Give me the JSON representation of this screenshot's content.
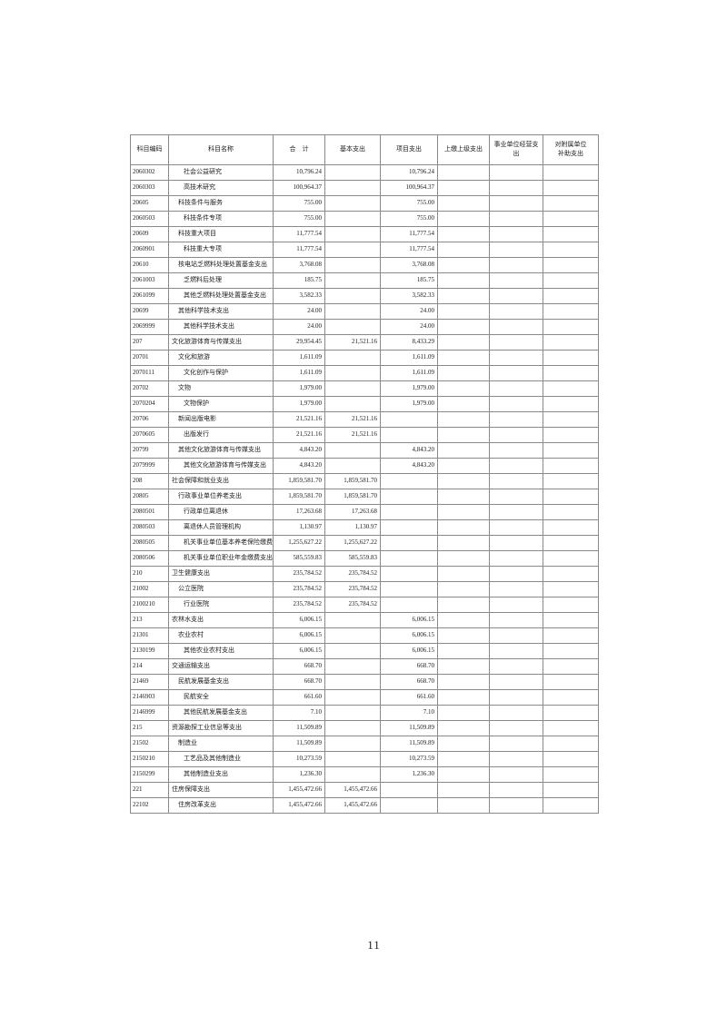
{
  "page": {
    "number": "11"
  },
  "table": {
    "columns": [
      {
        "label": "科目编码"
      },
      {
        "label": "科目名称"
      },
      {
        "label": "合　计"
      },
      {
        "label": "基本支出"
      },
      {
        "label": "项目支出"
      },
      {
        "label": "上缴上级支出"
      },
      {
        "label": "事业单位经营支出"
      },
      {
        "label": "对附属单位\n补助支出"
      }
    ],
    "rows": [
      {
        "code": "2060302",
        "name": "社会公益研究",
        "indent": 2,
        "total": "10,796.24",
        "basic": "",
        "project": "10,796.24"
      },
      {
        "code": "2060303",
        "name": "高技术研究",
        "indent": 2,
        "total": "100,964.37",
        "basic": "",
        "project": "100,964.37"
      },
      {
        "code": "20605",
        "name": "科技条件与服务",
        "indent": 1,
        "total": "755.00",
        "basic": "",
        "project": "755.00"
      },
      {
        "code": "2060503",
        "name": "科技条件专项",
        "indent": 2,
        "total": "755.00",
        "basic": "",
        "project": "755.00"
      },
      {
        "code": "20609",
        "name": "科技重大项目",
        "indent": 1,
        "total": "11,777.54",
        "basic": "",
        "project": "11,777.54"
      },
      {
        "code": "2060901",
        "name": "科技重大专项",
        "indent": 2,
        "total": "11,777.54",
        "basic": "",
        "project": "11,777.54"
      },
      {
        "code": "20610",
        "name": "核电站乏燃料处理处置基金支出",
        "indent": 1,
        "total": "3,768.08",
        "basic": "",
        "project": "3,768.08"
      },
      {
        "code": "2061003",
        "name": "乏燃料后处理",
        "indent": 2,
        "total": "185.75",
        "basic": "",
        "project": "185.75"
      },
      {
        "code": "2061099",
        "name": "其他乏燃料处理处置基金支出",
        "indent": 2,
        "total": "3,582.33",
        "basic": "",
        "project": "3,582.33"
      },
      {
        "code": "20699",
        "name": "其他科学技术支出",
        "indent": 1,
        "total": "24.00",
        "basic": "",
        "project": "24.00"
      },
      {
        "code": "2069999",
        "name": "其他科学技术支出",
        "indent": 2,
        "total": "24.00",
        "basic": "",
        "project": "24.00"
      },
      {
        "code": "207",
        "name": "文化旅游体育与传媒支出",
        "indent": 0,
        "total": "29,954.45",
        "basic": "21,521.16",
        "project": "8,433.29"
      },
      {
        "code": "20701",
        "name": "文化和旅游",
        "indent": 1,
        "total": "1,611.09",
        "basic": "",
        "project": "1,611.09"
      },
      {
        "code": "2070111",
        "name": "文化创作与保护",
        "indent": 2,
        "total": "1,611.09",
        "basic": "",
        "project": "1,611.09"
      },
      {
        "code": "20702",
        "name": "文物",
        "indent": 1,
        "total": "1,979.00",
        "basic": "",
        "project": "1,979.00"
      },
      {
        "code": "2070204",
        "name": "文物保护",
        "indent": 2,
        "total": "1,979.00",
        "basic": "",
        "project": "1,979.00"
      },
      {
        "code": "20706",
        "name": "新闻出版电影",
        "indent": 1,
        "total": "21,521.16",
        "basic": "21,521.16",
        "project": ""
      },
      {
        "code": "2070605",
        "name": "出版发行",
        "indent": 2,
        "total": "21,521.16",
        "basic": "21,521.16",
        "project": ""
      },
      {
        "code": "20799",
        "name": "其他文化旅游体育与传媒支出",
        "indent": 1,
        "total": "4,843.20",
        "basic": "",
        "project": "4,843.20"
      },
      {
        "code": "2079999",
        "name": "其他文化旅游体育与传媒支出",
        "indent": 2,
        "total": "4,843.20",
        "basic": "",
        "project": "4,843.20"
      },
      {
        "code": "208",
        "name": "社会保障和就业支出",
        "indent": 0,
        "total": "1,859,581.70",
        "basic": "1,859,581.70",
        "project": ""
      },
      {
        "code": "20805",
        "name": "行政事业单位养老支出",
        "indent": 1,
        "total": "1,859,581.70",
        "basic": "1,859,581.70",
        "project": ""
      },
      {
        "code": "2080501",
        "name": "行政单位离退休",
        "indent": 2,
        "total": "17,263.68",
        "basic": "17,263.68",
        "project": ""
      },
      {
        "code": "2080503",
        "name": "离退休人员管理机构",
        "indent": 2,
        "total": "1,130.97",
        "basic": "1,130.97",
        "project": ""
      },
      {
        "code": "2080505",
        "name": "机关事业单位基本养老保险缴费支出",
        "indent": 2,
        "total": "1,255,627.22",
        "basic": "1,255,627.22",
        "project": ""
      },
      {
        "code": "2080506",
        "name": "机关事业单位职业年金缴费支出",
        "indent": 2,
        "total": "585,559.83",
        "basic": "585,559.83",
        "project": ""
      },
      {
        "code": "210",
        "name": "卫生健康支出",
        "indent": 0,
        "total": "235,784.52",
        "basic": "235,784.52",
        "project": ""
      },
      {
        "code": "21002",
        "name": "公立医院",
        "indent": 1,
        "total": "235,784.52",
        "basic": "235,784.52",
        "project": ""
      },
      {
        "code": "2100210",
        "name": "行业医院",
        "indent": 2,
        "total": "235,784.52",
        "basic": "235,784.52",
        "project": ""
      },
      {
        "code": "213",
        "name": "农林水支出",
        "indent": 0,
        "total": "6,006.15",
        "basic": "",
        "project": "6,006.15"
      },
      {
        "code": "21301",
        "name": "农业农村",
        "indent": 1,
        "total": "6,006.15",
        "basic": "",
        "project": "6,006.15"
      },
      {
        "code": "2130199",
        "name": "其他农业农村支出",
        "indent": 2,
        "total": "6,006.15",
        "basic": "",
        "project": "6,006.15"
      },
      {
        "code": "214",
        "name": "交通运输支出",
        "indent": 0,
        "total": "668.70",
        "basic": "",
        "project": "668.70"
      },
      {
        "code": "21469",
        "name": "民航发展基金支出",
        "indent": 1,
        "total": "668.70",
        "basic": "",
        "project": "668.70"
      },
      {
        "code": "2146903",
        "name": "民航安全",
        "indent": 2,
        "total": "661.60",
        "basic": "",
        "project": "661.60"
      },
      {
        "code": "2146999",
        "name": "其他民航发展基金支出",
        "indent": 2,
        "total": "7.10",
        "basic": "",
        "project": "7.10"
      },
      {
        "code": "215",
        "name": "资源勘探工业信息等支出",
        "indent": 0,
        "total": "11,509.89",
        "basic": "",
        "project": "11,509.89"
      },
      {
        "code": "21502",
        "name": "制造业",
        "indent": 1,
        "total": "11,509.89",
        "basic": "",
        "project": "11,509.89"
      },
      {
        "code": "2150210",
        "name": "工艺品及其他制造业",
        "indent": 2,
        "total": "10,273.59",
        "basic": "",
        "project": "10,273.59"
      },
      {
        "code": "2150299",
        "name": "其他制造业支出",
        "indent": 2,
        "total": "1,236.30",
        "basic": "",
        "project": "1,236.30"
      },
      {
        "code": "221",
        "name": "住房保障支出",
        "indent": 0,
        "total": "1,455,472.66",
        "basic": "1,455,472.66",
        "project": ""
      },
      {
        "code": "22102",
        "name": "住房改革支出",
        "indent": 1,
        "total": "1,455,472.66",
        "basic": "1,455,472.66",
        "project": ""
      }
    ]
  }
}
